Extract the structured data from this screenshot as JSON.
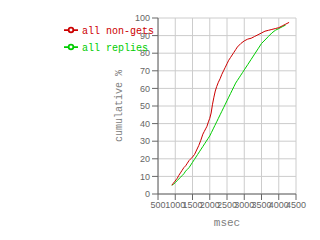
{
  "chart_data": {
    "type": "line",
    "xlabel": "msec",
    "ylabel": "cumulative %",
    "xlim": [
      500,
      4500
    ],
    "ylim": [
      0,
      100
    ],
    "xticks": [
      500,
      1000,
      1500,
      2000,
      2500,
      3000,
      3500,
      4000,
      4500
    ],
    "yticks": [
      0,
      10,
      20,
      30,
      40,
      50,
      60,
      70,
      80,
      90,
      100
    ],
    "grid": true,
    "legend": "upper left",
    "series": [
      {
        "name": "all replies",
        "color": "#00cc00",
        "x": [
          900,
          950,
          1000,
          1050,
          1100,
          1150,
          1200,
          1250,
          1300,
          1350,
          1400,
          1450,
          1500,
          1550,
          1600,
          1650,
          1700,
          1750,
          1800,
          1850,
          1900,
          1950,
          2000,
          2050,
          2100,
          2150,
          2200,
          2250,
          2300,
          2350,
          2400,
          2450,
          2500,
          2550,
          2600,
          2650,
          2700,
          2750,
          2800,
          2850,
          2900,
          2950,
          3000,
          3100,
          3200,
          3300,
          3400,
          3500,
          3600,
          3700,
          3800,
          3900,
          4000,
          4100,
          4200
        ],
        "values": [
          5,
          5.5,
          6.5,
          7.5,
          8.5,
          9.5,
          10.5,
          11.5,
          13,
          14,
          15,
          16.5,
          18,
          19.5,
          21,
          22.5,
          24,
          25.5,
          27,
          28.5,
          30,
          31.5,
          33,
          35,
          37,
          39,
          41,
          43,
          45,
          47,
          49,
          51,
          53,
          55,
          57,
          59,
          61,
          63,
          64.5,
          66,
          67.5,
          69,
          70.5,
          73.5,
          76.5,
          79.5,
          82.5,
          85.5,
          87.5,
          89.5,
          91.5,
          93,
          94,
          95,
          96
        ]
      },
      {
        "name": "all non-gets",
        "color": "#cc0000",
        "x": [
          900,
          940,
          980,
          1020,
          1060,
          1100,
          1150,
          1200,
          1250,
          1300,
          1350,
          1400,
          1450,
          1500,
          1560,
          1620,
          1680,
          1740,
          1800,
          1840,
          1880,
          1920,
          1960,
          2000,
          2040,
          2080,
          2120,
          2160,
          2200,
          2250,
          2300,
          2350,
          2400,
          2450,
          2500,
          2550,
          2600,
          2650,
          2700,
          2750,
          2800,
          2900,
          3000,
          3100,
          3200,
          3300,
          3400,
          3500,
          3600,
          3700,
          3800,
          3900,
          4000,
          4100,
          4200,
          4300
        ],
        "values": [
          5,
          6,
          7,
          8,
          9,
          10.5,
          12,
          13.5,
          15,
          16,
          17.5,
          19,
          20,
          21,
          22.5,
          25,
          27.5,
          30.5,
          34,
          35.5,
          37,
          38.5,
          41,
          43,
          46,
          51,
          55,
          58.5,
          61,
          63.5,
          65.5,
          68,
          70,
          72,
          74,
          76,
          77.5,
          79,
          80.5,
          82,
          83.5,
          85.5,
          87,
          88,
          88.5,
          89.5,
          90.5,
          91.5,
          92.5,
          93,
          93.5,
          94,
          94.5,
          95.5,
          96.5,
          97.5
        ]
      }
    ]
  }
}
